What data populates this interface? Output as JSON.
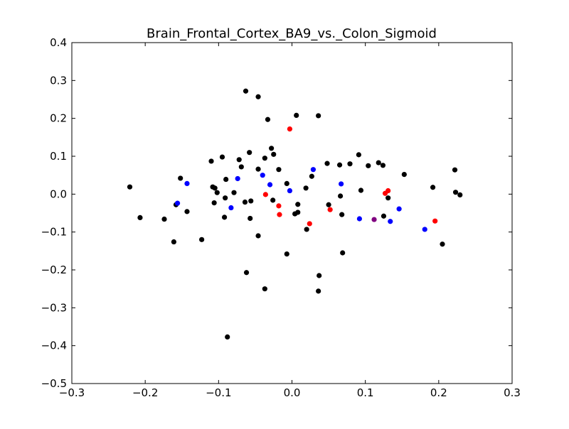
{
  "chart_data": {
    "type": "scatter",
    "title": "Brain_Frontal_Cortex_BA9_vs._Colon_Sigmoid",
    "xlabel": "",
    "ylabel": "",
    "xlim": [
      -0.3,
      0.3
    ],
    "ylim": [
      -0.5,
      0.4
    ],
    "x_ticks": [
      -0.3,
      -0.2,
      -0.1,
      0.0,
      0.1,
      0.2,
      0.3
    ],
    "x_tick_labels": [
      "−0.3",
      "−0.2",
      "−0.1",
      "0.0",
      "0.1",
      "0.2",
      "0.3"
    ],
    "y_ticks": [
      0.4,
      0.3,
      0.2,
      0.1,
      0.0,
      -0.1,
      -0.2,
      -0.3,
      -0.4,
      -0.5
    ],
    "y_tick_labels": [
      "0.4",
      "0.3",
      "0.2",
      "0.1",
      "0.0",
      "−0.1",
      "−0.2",
      "−0.3",
      "−0.4",
      "−0.5"
    ],
    "grid": false,
    "series": [
      {
        "color": "#000000",
        "points": [
          [
            -0.221,
            0.019
          ],
          [
            -0.207,
            -0.062
          ],
          [
            -0.174,
            -0.066
          ],
          [
            -0.161,
            -0.126
          ],
          [
            -0.158,
            -0.028
          ],
          [
            -0.152,
            0.042
          ],
          [
            -0.143,
            -0.046
          ],
          [
            -0.123,
            -0.12
          ],
          [
            -0.11,
            0.087
          ],
          [
            -0.108,
            0.019
          ],
          [
            -0.106,
            -0.023
          ],
          [
            -0.105,
            0.016
          ],
          [
            -0.102,
            0.004
          ],
          [
            -0.095,
            0.098
          ],
          [
            -0.092,
            -0.061
          ],
          [
            -0.091,
            -0.01
          ],
          [
            -0.09,
            0.039
          ],
          [
            -0.088,
            -0.377
          ],
          [
            -0.079,
            0.004
          ],
          [
            -0.072,
            0.091
          ],
          [
            -0.069,
            0.072
          ],
          [
            -0.064,
            -0.021
          ],
          [
            -0.063,
            0.272
          ],
          [
            -0.062,
            -0.207
          ],
          [
            -0.058,
            0.11
          ],
          [
            -0.057,
            -0.064
          ],
          [
            -0.056,
            -0.018
          ],
          [
            -0.046,
            0.257
          ],
          [
            -0.046,
            0.066
          ],
          [
            -0.046,
            -0.11
          ],
          [
            -0.037,
            0.095
          ],
          [
            -0.037,
            -0.25
          ],
          [
            -0.033,
            0.197
          ],
          [
            -0.028,
            0.121
          ],
          [
            -0.026,
            -0.016
          ],
          [
            -0.025,
            0.105
          ],
          [
            -0.018,
            0.065
          ],
          [
            -0.007,
            0.028
          ],
          [
            -0.007,
            -0.158
          ],
          [
            0.004,
            -0.052
          ],
          [
            0.006,
            0.208
          ],
          [
            0.008,
            -0.027
          ],
          [
            0.008,
            -0.048
          ],
          [
            0.019,
            0.016
          ],
          [
            0.02,
            -0.093
          ],
          [
            0.027,
            0.047
          ],
          [
            0.036,
            0.207
          ],
          [
            0.036,
            -0.256
          ],
          [
            0.037,
            -0.215
          ],
          [
            0.048,
            0.081
          ],
          [
            0.05,
            -0.028
          ],
          [
            0.065,
            0.077
          ],
          [
            0.066,
            -0.005
          ],
          [
            0.068,
            -0.054
          ],
          [
            0.069,
            -0.155
          ],
          [
            0.079,
            0.08
          ],
          [
            0.091,
            0.104
          ],
          [
            0.094,
            0.01
          ],
          [
            0.104,
            0.075
          ],
          [
            0.118,
            0.083
          ],
          [
            0.124,
            0.076
          ],
          [
            0.125,
            -0.058
          ],
          [
            0.131,
            -0.01
          ],
          [
            0.153,
            0.052
          ],
          [
            0.192,
            0.018
          ],
          [
            0.205,
            -0.132
          ],
          [
            0.222,
            0.064
          ],
          [
            0.223,
            0.005
          ],
          [
            0.229,
            -0.002
          ]
        ]
      },
      {
        "color": "#0000ff",
        "points": [
          [
            -0.156,
            -0.024
          ],
          [
            -0.143,
            0.028
          ],
          [
            -0.083,
            -0.036
          ],
          [
            -0.074,
            0.041
          ],
          [
            -0.04,
            0.05
          ],
          [
            -0.03,
            0.025
          ],
          [
            -0.003,
            0.009
          ],
          [
            0.029,
            0.065
          ],
          [
            0.067,
            0.027
          ],
          [
            0.092,
            -0.065
          ],
          [
            0.134,
            -0.072
          ],
          [
            0.146,
            -0.039
          ],
          [
            0.181,
            -0.093
          ]
        ]
      },
      {
        "color": "#ff0000",
        "points": [
          [
            -0.003,
            0.172
          ],
          [
            -0.036,
            -0.001
          ],
          [
            -0.018,
            -0.031
          ],
          [
            -0.017,
            -0.054
          ],
          [
            0.024,
            -0.078
          ],
          [
            0.052,
            -0.041
          ],
          [
            0.127,
            0.002
          ],
          [
            0.131,
            0.009
          ],
          [
            0.195,
            -0.071
          ]
        ]
      },
      {
        "color": "#800080",
        "points": [
          [
            0.112,
            -0.067
          ]
        ]
      }
    ]
  }
}
